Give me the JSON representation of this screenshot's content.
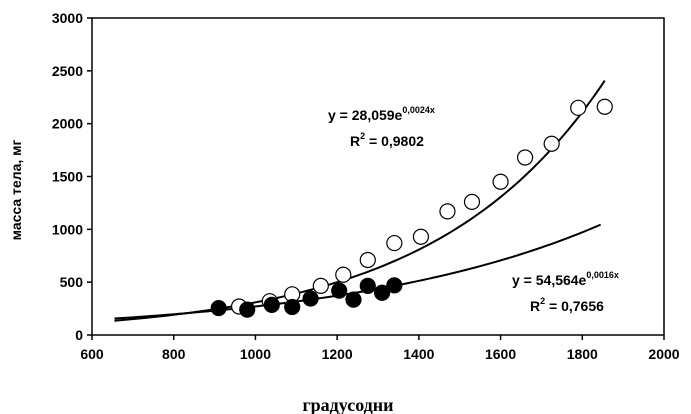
{
  "chart_data": {
    "type": "scatter",
    "xlabel": "градусодни",
    "ylabel": "масса тела, мг",
    "xlim": [
      600,
      2000
    ],
    "ylim": [
      0,
      3000
    ],
    "xticks": [
      "600",
      "800",
      "1000",
      "1200",
      "1400",
      "1600",
      "1800",
      "2000"
    ],
    "yticks": [
      "0",
      "500",
      "1000",
      "1500",
      "2000",
      "2500",
      "3000"
    ],
    "grid": false,
    "legend": "none",
    "series": [
      {
        "marker": "open-circle",
        "x": [
          960,
          1035,
          1090,
          1160,
          1215,
          1275,
          1340,
          1405,
          1470,
          1530,
          1600,
          1660,
          1725,
          1790,
          1855
        ],
        "y": [
          270,
          320,
          385,
          465,
          570,
          710,
          870,
          930,
          1170,
          1260,
          1450,
          1680,
          1810,
          2150,
          2160
        ],
        "trendline": {
          "type": "exponential",
          "a": 28.059,
          "b": 0.0024,
          "x_range": [
            655,
            1855
          ],
          "equation_prefix": "y = 28,059e",
          "equation_exponent": "0,0024x",
          "r2_prefix": "R",
          "r2_power": "2",
          "r2_suffix": " = 0,9802"
        }
      },
      {
        "marker": "filled-circle",
        "x": [
          910,
          980,
          1040,
          1090,
          1135,
          1205,
          1240,
          1275,
          1310,
          1340
        ],
        "y": [
          255,
          240,
          285,
          265,
          345,
          420,
          335,
          465,
          400,
          470
        ],
        "trendline": {
          "type": "exponential",
          "a": 54.564,
          "b": 0.0016,
          "x_range": [
            655,
            1845
          ],
          "equation_prefix": "y = 54,564e",
          "equation_exponent": "0,0016x",
          "r2_prefix": "R",
          "r2_power": "2",
          "r2_suffix": " = 0,7656"
        }
      }
    ]
  }
}
